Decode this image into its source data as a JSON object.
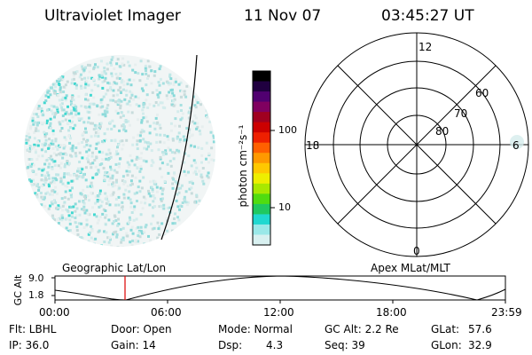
{
  "header": {
    "instrument": "Ultraviolet Imager",
    "date": "11 Nov 07",
    "time": "03:45:27 UT"
  },
  "colorbar": {
    "unit_label": "photon cm⁻²s⁻¹",
    "ticks": [
      "100",
      "10"
    ],
    "colors": [
      "#000000",
      "#200040",
      "#500070",
      "#800060",
      "#a00020",
      "#cc0000",
      "#ee2000",
      "#ff6000",
      "#ff9900",
      "#ffc800",
      "#eeee00",
      "#a8e800",
      "#50dc10",
      "#20c860",
      "#20d8d0",
      "#9ae8e8",
      "#d8f0f0"
    ]
  },
  "polar_plot": {
    "labels": {
      "mlt_top": "12",
      "mlt_bottom": "0",
      "mlt_left": "18",
      "mlt_right": "6",
      "lat_60": "60",
      "lat_70": "70",
      "lat_80": "80"
    }
  },
  "timeline": {
    "left_title": "Geographic Lat/Lon",
    "right_title": "Apex MLat/MLT",
    "axis_title": "GC Alt",
    "y_ticks": [
      "9.0",
      "1.8"
    ],
    "x_ticks": [
      "00:00",
      "06:00",
      "12:00",
      "18:00",
      "23:59"
    ],
    "marker_time": "03:45:27",
    "marker_color": "#dd0000"
  },
  "status": {
    "flt": "Flt: LBHL",
    "door": "Door: Open",
    "mode": "Mode: Normal",
    "gc_alt": "GC Alt: 2.2 Re",
    "glat_label": "GLat:",
    "glat_value": "57.6",
    "ip": "IP: 36.0",
    "gain": "Gain: 14",
    "dsp_label": "Dsp:",
    "dsp_value": "4.3",
    "seq": "Seq: 39",
    "glon_label": "GLon:",
    "glon_value": "32.9"
  }
}
